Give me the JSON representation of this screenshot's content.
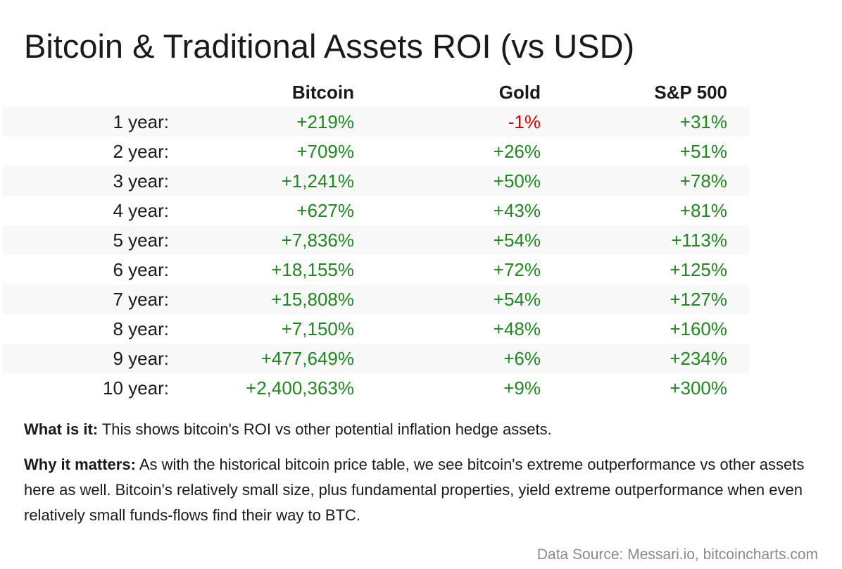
{
  "title": "Bitcoin & Traditional Assets ROI (vs USD)",
  "table": {
    "columns": [
      "",
      "Bitcoin",
      "Gold",
      "S&P 500"
    ],
    "rows": [
      {
        "label": "1 year:",
        "bitcoin": "+219%",
        "gold": "-1%",
        "sp500": "+31%"
      },
      {
        "label": "2 year:",
        "bitcoin": "+709%",
        "gold": "+26%",
        "sp500": "+51%"
      },
      {
        "label": "3 year:",
        "bitcoin": "+1,241%",
        "gold": "+50%",
        "sp500": "+78%"
      },
      {
        "label": "4 year:",
        "bitcoin": "+627%",
        "gold": "+43%",
        "sp500": "+81%"
      },
      {
        "label": "5 year:",
        "bitcoin": "+7,836%",
        "gold": "+54%",
        "sp500": "+113%"
      },
      {
        "label": "6 year:",
        "bitcoin": "+18,155%",
        "gold": "+72%",
        "sp500": "+125%"
      },
      {
        "label": "7 year:",
        "bitcoin": "+15,808%",
        "gold": "+54%",
        "sp500": "+127%"
      },
      {
        "label": "8 year:",
        "bitcoin": "+7,150%",
        "gold": "+48%",
        "sp500": "+160%"
      },
      {
        "label": "9 year:",
        "bitcoin": "+477,649%",
        "gold": "+6%",
        "sp500": "+234%"
      },
      {
        "label": "10 year:",
        "bitcoin": "+2,400,363%",
        "gold": "+9%",
        "sp500": "+300%"
      }
    ]
  },
  "colors": {
    "positive": "#1e8a1e",
    "negative": "#e00000",
    "stripe": "#f8f8f8",
    "source_text": "#8a8a8a"
  },
  "notes": {
    "what_label": "What is it:",
    "what_text": " This shows bitcoin's ROI vs other potential inflation hedge assets.",
    "why_label": "Why it matters:",
    "why_text": " As with the historical bitcoin price table, we see bitcoin's extreme outperformance vs other assets here as well. Bitcoin's relatively small size, plus fundamental properties, yield extreme outperformance when even relatively small funds-flows find their way to BTC."
  },
  "source": "Data Source: Messari.io, bitcoincharts.com"
}
